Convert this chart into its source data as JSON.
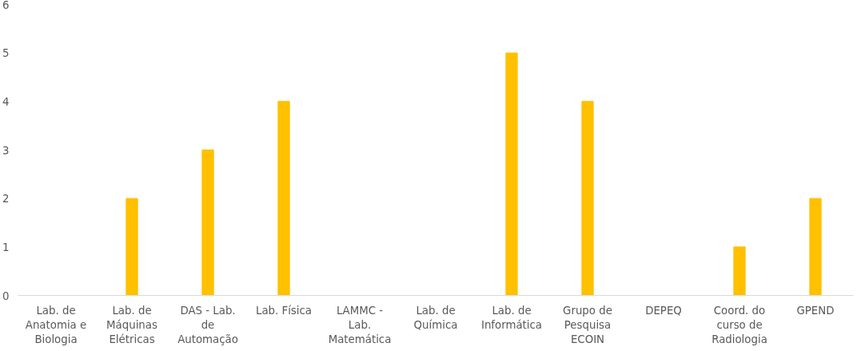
{
  "chart_data": {
    "type": "bar",
    "categories": [
      "Lab. de\nAnatomia e\nBiologia",
      "Lab. de\nMáquinas\nElétricas",
      "DAS - Lab.\nde\nAutomação",
      "Lab. Física",
      "LAMMC -\nLab.\nMatemática",
      "Lab. de\nQuímica",
      "Lab. de\nInformática",
      "Grupo de\nPesquisa\nECOIN",
      "DEPEQ",
      "Coord. do\ncurso de\nRadiologia",
      "GPEND"
    ],
    "values": [
      0,
      2,
      3,
      4,
      0,
      0,
      5,
      4,
      0,
      1,
      2
    ],
    "color": "#ffc000",
    "ylim": [
      0,
      6
    ],
    "yticks": [
      0,
      1,
      2,
      3,
      4,
      5,
      6
    ],
    "grid": false
  }
}
